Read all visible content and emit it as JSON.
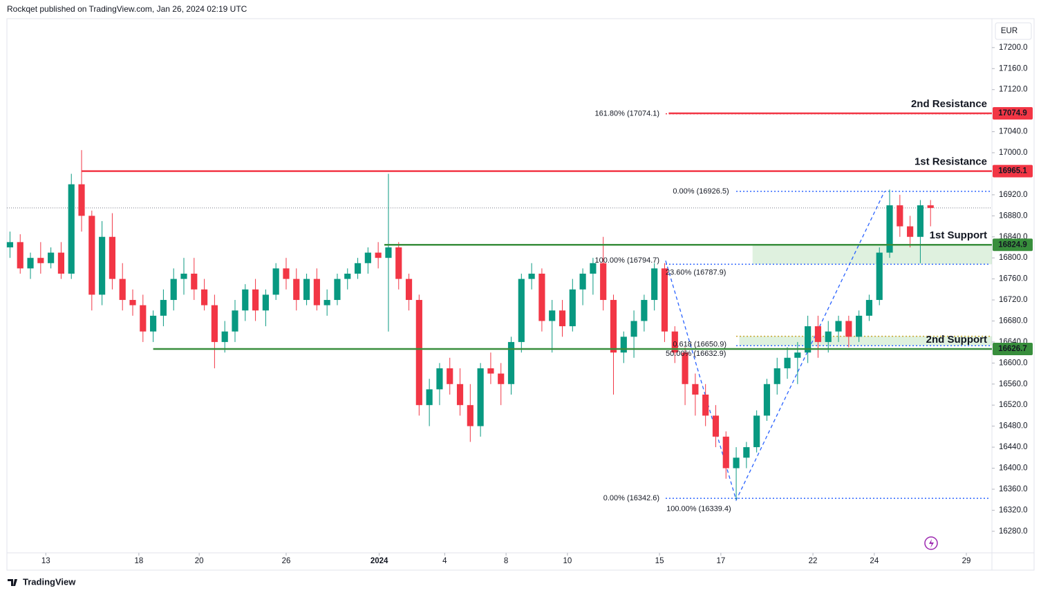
{
  "header": "Rockqet published on TradingView.com, Jan 26, 2024 02:19 UTC",
  "footer": "TradingView",
  "chart_data": {
    "type": "candlestick",
    "currency": "EUR",
    "up_color": "#089981",
    "down_color": "#f23645",
    "xlim": [
      -0.3,
      96
    ],
    "xticks": [
      {
        "value": 3.5,
        "label": "13"
      },
      {
        "value": 12.6,
        "label": "18"
      },
      {
        "value": 18.5,
        "label": "20"
      },
      {
        "value": 27,
        "label": "26"
      },
      {
        "value": 36.1,
        "label": "2024"
      },
      {
        "value": 42.5,
        "label": "4"
      },
      {
        "value": 48.5,
        "label": "8"
      },
      {
        "value": 54.5,
        "label": "10"
      },
      {
        "value": 63.5,
        "label": "15"
      },
      {
        "value": 69.5,
        "label": "17"
      },
      {
        "value": 78.5,
        "label": "22"
      },
      {
        "value": 84.5,
        "label": "24"
      },
      {
        "value": 93.5,
        "label": "29"
      }
    ],
    "ylim": [
      16239,
      17255
    ],
    "yticks": [
      {
        "value": 17200,
        "label": "17200.0"
      },
      {
        "value": 17160,
        "label": "17160.0"
      },
      {
        "value": 17120,
        "label": "17120.0"
      },
      {
        "value": 17040,
        "label": "17040.0"
      },
      {
        "value": 17000,
        "label": "17000.0"
      },
      {
        "value": 16920,
        "label": "16920.0"
      },
      {
        "value": 16880,
        "label": "16880.0"
      },
      {
        "value": 16840,
        "label": "16840.0"
      },
      {
        "value": 16800,
        "label": "16800.0"
      },
      {
        "value": 16760,
        "label": "16760.0"
      },
      {
        "value": 16720,
        "label": "16720.0"
      },
      {
        "value": 16680,
        "label": "16680.0"
      },
      {
        "value": 16640,
        "label": "16640.0"
      },
      {
        "value": 16600,
        "label": "16600.0"
      },
      {
        "value": 16560,
        "label": "16560.0"
      },
      {
        "value": 16520,
        "label": "16520.0"
      },
      {
        "value": 16480,
        "label": "16480.0"
      },
      {
        "value": 16440,
        "label": "16440.0"
      },
      {
        "value": 16400,
        "label": "16400.0"
      },
      {
        "value": 16360,
        "label": "16360.0"
      },
      {
        "value": 16320,
        "label": "16320.0"
      },
      {
        "value": 16280,
        "label": "16280.0"
      }
    ],
    "ohlc": [
      [
        16820,
        16850,
        16800,
        16830
      ],
      [
        16830,
        16845,
        16770,
        16780
      ],
      [
        16780,
        16810,
        16760,
        16800
      ],
      [
        16800,
        16830,
        16770,
        16790
      ],
      [
        16790,
        16820,
        16780,
        16810
      ],
      [
        16810,
        16830,
        16760,
        16770
      ],
      [
        16770,
        16960,
        16760,
        16940
      ],
      [
        16940,
        17005,
        16850,
        16880
      ],
      [
        16880,
        16890,
        16700,
        16730
      ],
      [
        16730,
        16870,
        16710,
        16840
      ],
      [
        16840,
        16885,
        16740,
        16760
      ],
      [
        16760,
        16790,
        16700,
        16720
      ],
      [
        16720,
        16740,
        16690,
        16710
      ],
      [
        16710,
        16730,
        16640,
        16660
      ],
      [
        16660,
        16700,
        16640,
        16690
      ],
      [
        16690,
        16740,
        16670,
        16720
      ],
      [
        16720,
        16780,
        16700,
        16760
      ],
      [
        16760,
        16800,
        16730,
        16770
      ],
      [
        16770,
        16800,
        16720,
        16740
      ],
      [
        16740,
        16760,
        16700,
        16710
      ],
      [
        16710,
        16730,
        16590,
        16640
      ],
      [
        16640,
        16680,
        16620,
        16660
      ],
      [
        16660,
        16720,
        16640,
        16700
      ],
      [
        16700,
        16750,
        16680,
        16740
      ],
      [
        16740,
        16760,
        16680,
        16700
      ],
      [
        16700,
        16740,
        16670,
        16730
      ],
      [
        16730,
        16790,
        16720,
        16780
      ],
      [
        16780,
        16800,
        16740,
        16760
      ],
      [
        16760,
        16780,
        16700,
        16720
      ],
      [
        16720,
        16770,
        16710,
        16760
      ],
      [
        16760,
        16780,
        16700,
        16710
      ],
      [
        16710,
        16740,
        16690,
        16720
      ],
      [
        16720,
        16770,
        16710,
        16760
      ],
      [
        16760,
        16780,
        16740,
        16770
      ],
      [
        16770,
        16800,
        16760,
        16790
      ],
      [
        16790,
        16820,
        16770,
        16810
      ],
      [
        16810,
        16830,
        16780,
        16800
      ],
      [
        16800,
        16960,
        16660,
        16820
      ],
      [
        16820,
        16830,
        16740,
        16760
      ],
      [
        16760,
        16770,
        16700,
        16720
      ],
      [
        16720,
        16730,
        16500,
        16520
      ],
      [
        16520,
        16570,
        16480,
        16550
      ],
      [
        16550,
        16600,
        16520,
        16590
      ],
      [
        16590,
        16610,
        16540,
        16560
      ],
      [
        16560,
        16590,
        16500,
        16520
      ],
      [
        16520,
        16560,
        16450,
        16480
      ],
      [
        16480,
        16600,
        16460,
        16590
      ],
      [
        16590,
        16620,
        16560,
        16580
      ],
      [
        16580,
        16600,
        16520,
        16560
      ],
      [
        16560,
        16650,
        16540,
        16640
      ],
      [
        16640,
        16770,
        16620,
        16760
      ],
      [
        16760,
        16790,
        16740,
        16770
      ],
      [
        16770,
        16780,
        16660,
        16680
      ],
      [
        16680,
        16720,
        16620,
        16700
      ],
      [
        16700,
        16720,
        16650,
        16670
      ],
      [
        16670,
        16760,
        16660,
        16740
      ],
      [
        16740,
        16780,
        16710,
        16770
      ],
      [
        16770,
        16800,
        16730,
        16790
      ],
      [
        16790,
        16840,
        16700,
        16720
      ],
      [
        16720,
        16730,
        16540,
        16620
      ],
      [
        16620,
        16660,
        16600,
        16650
      ],
      [
        16650,
        16700,
        16610,
        16680
      ],
      [
        16680,
        16730,
        16660,
        16720
      ],
      [
        16720,
        16790,
        16700,
        16780
      ],
      [
        16780,
        16790,
        16640,
        16660
      ],
      [
        16660,
        16670,
        16600,
        16620
      ],
      [
        16620,
        16630,
        16520,
        16560
      ],
      [
        16560,
        16580,
        16500,
        16540
      ],
      [
        16540,
        16560,
        16480,
        16500
      ],
      [
        16500,
        16520,
        16440,
        16460
      ],
      [
        16460,
        16470,
        16380,
        16400
      ],
      [
        16400,
        16440,
        16340,
        16420
      ],
      [
        16420,
        16450,
        16400,
        16440
      ],
      [
        16440,
        16510,
        16430,
        16500
      ],
      [
        16500,
        16570,
        16490,
        16560
      ],
      [
        16560,
        16610,
        16540,
        16590
      ],
      [
        16590,
        16630,
        16570,
        16610
      ],
      [
        16610,
        16640,
        16560,
        16620
      ],
      [
        16620,
        16690,
        16600,
        16670
      ],
      [
        16670,
        16690,
        16610,
        16640
      ],
      [
        16640,
        16680,
        16620,
        16660
      ],
      [
        16660,
        16690,
        16640,
        16680
      ],
      [
        16680,
        16690,
        16630,
        16650
      ],
      [
        16650,
        16700,
        16640,
        16690
      ],
      [
        16690,
        16730,
        16680,
        16720
      ],
      [
        16720,
        16820,
        16710,
        16810
      ],
      [
        16810,
        16930,
        16800,
        16900
      ],
      [
        16900,
        16920,
        16840,
        16860
      ],
      [
        16860,
        16880,
        16820,
        16840
      ],
      [
        16840,
        16910,
        16790,
        16900
      ],
      [
        16900,
        16910,
        16860,
        16895
      ]
    ],
    "last_price": 16895,
    "levels": [
      {
        "label": "2nd Resistance",
        "value": 17074.9,
        "color": "#f23645",
        "start": 64.4
      },
      {
        "label": "1st Resistance",
        "value": 16965.1,
        "color": "#f23645",
        "start": 7
      },
      {
        "label": "1st Support",
        "value": 16824.9,
        "color": "#388e3c",
        "start": 36.6
      },
      {
        "label": "2nd Support",
        "value": 16626.7,
        "color": "#388e3c",
        "start": 14
      }
    ],
    "zones": [
      {
        "start": 72.6,
        "low": 16788,
        "high": 16824.9
      },
      {
        "start": 71.3,
        "low": 16632.9,
        "high": 16650.9
      }
    ],
    "fib_labels": [
      {
        "text": "161.80% (17074.1)",
        "value": 17074.1,
        "x": 63.5,
        "color": "#2962ff"
      },
      {
        "text": "0.00% (16926.5)",
        "value": 16926.5,
        "x": 70.3,
        "color": "#2962ff"
      },
      {
        "text": "100.00% (16794.7)",
        "value": 16794.7,
        "x": 63.5,
        "color": "#2962ff"
      },
      {
        "text": "23.60% (16787.9)",
        "value": 16787.9,
        "x": 64.1,
        "color": "#2962ff",
        "anchor": "start"
      },
      {
        "text": "0.618 (16650.9)",
        "value": 16650.9,
        "x": 64.8,
        "color": "#c9a227",
        "anchor": "start"
      },
      {
        "text": "50.00% (16632.9)",
        "value": 16632.9,
        "x": 64.1,
        "color": "#2962ff",
        "anchor": "start"
      },
      {
        "text": "0.00% (16342.6)",
        "value": 16342.6,
        "x": 63.5,
        "color": "#2962ff"
      },
      {
        "text": "100.00% (16339.4)",
        "value": 16339.4,
        "x": 70.5,
        "color": "#2962ff"
      }
    ],
    "fib_lines": [
      {
        "value": 16926.5,
        "start": 71
      },
      {
        "value": 16787.9,
        "start": 64.1
      },
      {
        "value": 16650.9,
        "start": 71
      },
      {
        "value": 16632.9,
        "start": 71
      },
      {
        "value": 16342.6,
        "start": 64.1
      },
      {
        "value": 17074.1,
        "start": 64.1
      }
    ],
    "trend": [
      [
        64.1,
        16794.7
      ],
      [
        71,
        16339.4
      ],
      [
        85.5,
        16926.5
      ]
    ]
  }
}
